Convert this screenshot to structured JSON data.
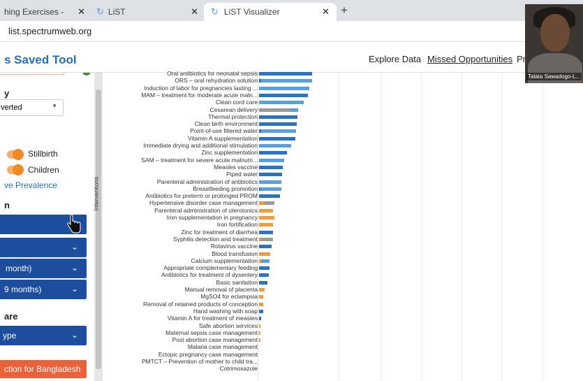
{
  "browser": {
    "tabs": [
      {
        "title": "hing Exercises - ",
        "close": "✕"
      },
      {
        "title": "LiST",
        "close": "✕"
      },
      {
        "title": "LiST Visualizer",
        "close": "✕"
      }
    ],
    "new_tab": "+",
    "url": "list.spectrumweb.org"
  },
  "app": {
    "title": "s Saved Tool",
    "nav": [
      "Explore Data",
      "Missed Opportunities",
      "Pr"
    ]
  },
  "sidebar": {
    "label_y": "y",
    "select_value": "verted",
    "toggles": [
      "Stillbirth",
      "Children"
    ],
    "link": "ve Prevalence",
    "label_n": "n",
    "buttons": [
      "",
      "",
      "month)",
      "9 months)"
    ],
    "label_are": "are",
    "type_button": "ype",
    "action_button": "ction for Bangladesh"
  },
  "video": {
    "name": "Talata Sawadogo-L..."
  },
  "chart_data": {
    "type": "bar",
    "orientation": "horizontal",
    "ylabel": "Interventions",
    "colors": {
      "blue": "#2b73c2",
      "lightblue": "#5aa0de",
      "gray": "#9a9a9a",
      "orange": "#f39a3c"
    },
    "categories": [
      "Oral antibiotics for neonatal sepsis",
      "ORS – oral rehydration solution",
      "Induction of labor for pregnancies lasting ...",
      "MAM – treatment for moderate acute maln...",
      "Clean cord care",
      "Cesarean delivery",
      "Thermal protection",
      "Clean birth environment",
      "Point-of-use filtered water",
      "Vitamin A supplementation",
      "Immediate drying and additional stimulation",
      "Zinc supplementation",
      "SAM – treatment for severe acute malnutri...",
      "Measles vaccine",
      "Piped water",
      "Parenteral administration of antibiotics",
      "Breastfeeding promotion",
      "Antibiotics for preterm or prolonged PROM",
      "Hypertensive disorder case management",
      "Parenteral administration of uterotonics",
      "Iron supplementation in pregnancy",
      "Iron fortification",
      "Zinc for treatment of diarrhea",
      "Syphilis detection and treatment",
      "Rotavirus vaccine",
      "Blood transfusion",
      "Calcium supplementation",
      "Appropriate complementary feeding",
      "Antibiotics for treatment of dysentery",
      "Basic sanitation",
      "Manual removal of placenta",
      "MgSO4 for eclampsia",
      "Removal of retained products of conception",
      "Hand washing with soap",
      "Vitamin A for treatment of measles",
      "Safe abortion services",
      "Maternal sepsis case management",
      "Post abortion case management",
      "Malaria case management",
      "Ectopic pregnancy case management",
      "PMTCT – Prevention of mother to child tra...",
      "Cotrimoxazole"
    ],
    "segments": [
      [
        [
          "blue",
          76
        ]
      ],
      [
        [
          "blue",
          3
        ],
        [
          "lightblue",
          73
        ]
      ],
      [
        [
          "lightblue",
          72
        ]
      ],
      [
        [
          "blue",
          70
        ]
      ],
      [
        [
          "lightblue",
          64
        ]
      ],
      [
        [
          "gray",
          44
        ],
        [
          "lightblue",
          12
        ]
      ],
      [
        [
          "blue",
          55
        ]
      ],
      [
        [
          "blue",
          54
        ]
      ],
      [
        [
          "blue",
          3
        ],
        [
          "lightblue",
          50
        ]
      ],
      [
        [
          "blue",
          52
        ]
      ],
      [
        [
          "lightblue",
          46
        ]
      ],
      [
        [
          "blue",
          40
        ]
      ],
      [
        [
          "lightblue",
          36
        ]
      ],
      [
        [
          "blue",
          34
        ]
      ],
      [
        [
          "blue",
          33
        ]
      ],
      [
        [
          "lightblue",
          32
        ]
      ],
      [
        [
          "blue",
          2
        ],
        [
          "lightblue",
          30
        ]
      ],
      [
        [
          "blue",
          30
        ]
      ],
      [
        [
          "orange",
          8
        ],
        [
          "gray",
          14
        ]
      ],
      [
        [
          "orange",
          20
        ]
      ],
      [
        [
          "orange",
          22
        ]
      ],
      [
        [
          "orange",
          20
        ]
      ],
      [
        [
          "blue",
          20
        ]
      ],
      [
        [
          "orange",
          3
        ],
        [
          "gray",
          17
        ]
      ],
      [
        [
          "blue",
          18
        ]
      ],
      [
        [
          "orange",
          16
        ]
      ],
      [
        [
          "orange",
          3
        ],
        [
          "lightblue",
          12
        ]
      ],
      [
        [
          "blue",
          15
        ]
      ],
      [
        [
          "blue",
          14
        ]
      ],
      [
        [
          "blue",
          12
        ]
      ],
      [
        [
          "orange",
          8
        ]
      ],
      [
        [
          "orange",
          6
        ]
      ],
      [
        [
          "orange",
          6
        ]
      ],
      [
        [
          "blue",
          6
        ]
      ],
      [
        [
          "blue",
          3
        ]
      ],
      [
        [
          "orange",
          2
        ]
      ],
      [
        [
          "orange",
          2
        ]
      ],
      [
        [
          "orange",
          2
        ]
      ],
      [],
      [],
      [],
      []
    ]
  }
}
